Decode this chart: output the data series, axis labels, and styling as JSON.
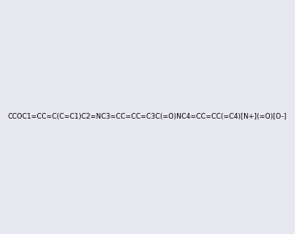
{
  "smiles": "CCOC1=CC=C(C=C1)C2=NC3=CC=CC=C3C(=O)NC4=CC=CC(=C4)[N+](=O)[O-]",
  "title": "",
  "bg_color": "#e8e8f0",
  "img_size": [
    300,
    300
  ],
  "bond_color": "#000000",
  "n_color": "#0000ff",
  "o_color": "#ff0000",
  "n_plus_color": "#0000ff",
  "o_minus_color": "#ff0000",
  "atom_colors": {
    "N": "#0000ff",
    "O": "#ff0000",
    "C": "#000000"
  }
}
